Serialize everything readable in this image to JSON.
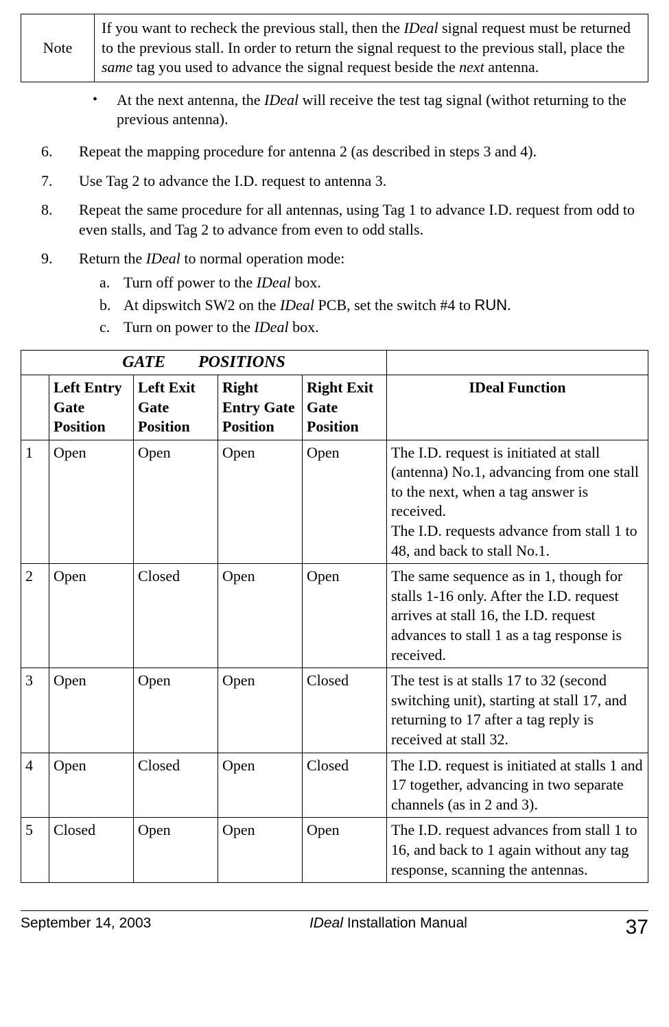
{
  "note": {
    "label": "Note",
    "text_html": "If you want to recheck the previous stall, then the <span class='italic'>IDeal</span> signal request must be returned to the previous stall.  In order to return the signal request to the previous stall, place the <span class='italic'>same</span> tag you used to advance the signal request beside the <span class='italic'>next</span> antenna."
  },
  "bullet_html": "At the next antenna, the <span class='italic'>IDeal</span> will receive the test tag signal (withot returning to the previous antenna).",
  "steps": [
    {
      "num": "6.",
      "html": "Repeat the mapping procedure for antenna 2 (as described in steps 3 and 4)."
    },
    {
      "num": "7.",
      "html": "Use Tag 2 to advance the I.D. request to antenna 3."
    },
    {
      "num": "8.",
      "html": "Repeat the same procedure for all antennas, using Tag 1 to advance I.D. request from odd to even stalls, and Tag 2 to advance from even to odd stalls."
    },
    {
      "num": "9.",
      "html": "Return the <span class='italic'>IDeal</span> to normal operation mode:",
      "sub": [
        {
          "let": "a.",
          "html": "Turn off power to the <span class='italic'>IDeal</span> box."
        },
        {
          "let": "b.",
          "html": "At dipswitch SW2 on the <span class='italic'>IDeal</span> PCB, set the switch #4 to <span class='sans'>RUN</span>."
        },
        {
          "let": "c.",
          "html": "Turn on power to the <span class='italic'>IDeal</span> box."
        }
      ]
    }
  ],
  "table": {
    "group_header_left": "GATE  POSITIONS",
    "group_header_right": "",
    "col_headers": [
      "",
      "Left Entry Gate Position",
      "Left Exit Gate Position",
      "Right Entry Gate Position",
      "Right Exit Gate Position"
    ],
    "func_header": "IDeal Function",
    "rows": [
      {
        "n": "1",
        "g": [
          "Open",
          "Open",
          "Open",
          "Open"
        ],
        "f": "The I.D. request is initiated at stall (antenna) No.1, advancing from one stall to the next, when a tag answer is received.\nThe I.D. requests advance from stall 1 to 48, and back to stall No.1."
      },
      {
        "n": "2",
        "g": [
          "Open",
          "Closed",
          "Open",
          "Open"
        ],
        "f": "The same sequence as in 1, though for stalls 1-16 only. After the I.D. request arrives at stall 16, the I.D. request advances to stall 1 as a tag response is received."
      },
      {
        "n": "3",
        "g": [
          "Open",
          "Open",
          "Open",
          "Closed"
        ],
        "f": "The test is at stalls 17 to 32 (second switching unit), starting at stall 17, and returning to 17 after a tag reply is received at stall 32."
      },
      {
        "n": "4",
        "g": [
          "Open",
          "Closed",
          "Open",
          "Closed"
        ],
        "f": "The I.D. request is initiated at stalls  1 and 17 together, advancing in two separate channels (as in 2 and 3)."
      },
      {
        "n": "5",
        "g": [
          "Closed",
          "Open",
          "Open",
          "Open"
        ],
        "f": "The I.D. request advances from stall 1 to 16, and back to 1 again without any tag response, scanning the antennas."
      }
    ]
  },
  "footer": {
    "date": "September 14, 2003",
    "title_italic": "IDeal",
    "title_rest": " Installation Manual",
    "page": "37"
  }
}
